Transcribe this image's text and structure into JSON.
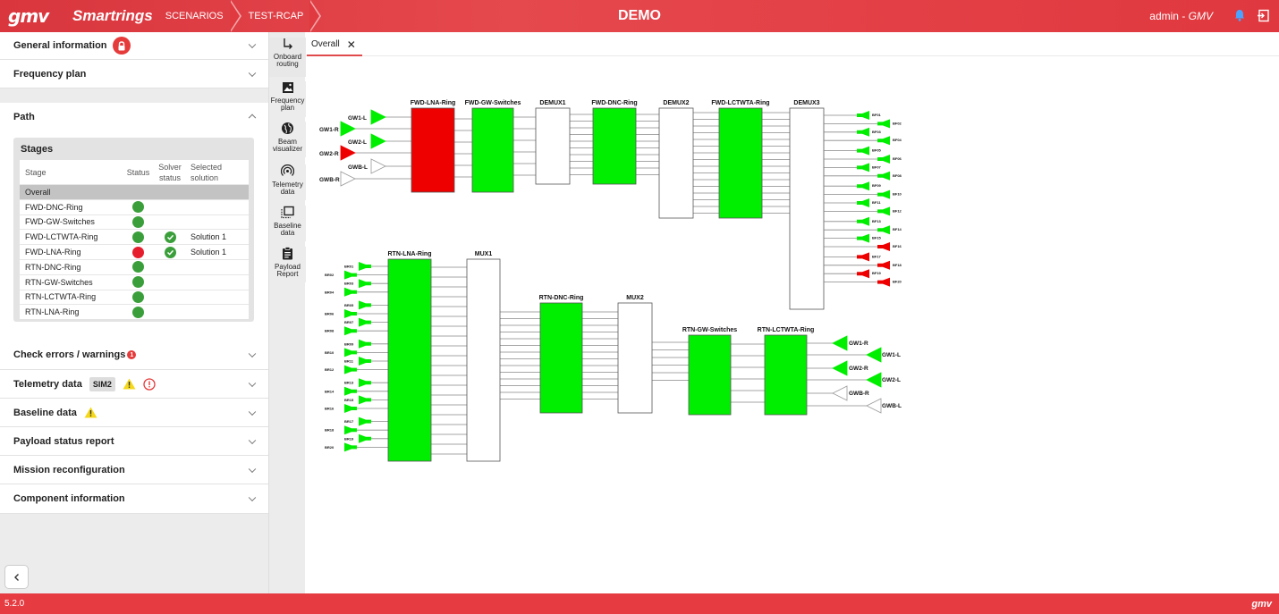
{
  "topbar": {
    "logo": "gmv",
    "app_name": "Smartrings",
    "crumbs": [
      "SCENARIOS",
      "TEST-RCAP"
    ],
    "title": "DEMO",
    "user": "admin - ",
    "user_org": "GMV"
  },
  "left": {
    "general_info": "General information",
    "frequency_plan": "Frequency plan",
    "path": "Path",
    "stages": {
      "title": "Stages",
      "headers": {
        "stage": "Stage",
        "status": "Status",
        "solver": "Solver status",
        "solution": "Selected solution"
      },
      "rows": [
        {
          "stage": "Overall",
          "status": "",
          "solver": "",
          "solution": ""
        },
        {
          "stage": "FWD-DNC-Ring",
          "status": "ok",
          "solver": "",
          "solution": ""
        },
        {
          "stage": "FWD-GW-Switches",
          "status": "ok",
          "solver": "",
          "solution": ""
        },
        {
          "stage": "FWD-LCTWTA-Ring",
          "status": "ok",
          "solver": "ok",
          "solution": "Solution 1"
        },
        {
          "stage": "FWD-LNA-Ring",
          "status": "error",
          "solver": "ok",
          "solution": "Solution 1"
        },
        {
          "stage": "RTN-DNC-Ring",
          "status": "ok",
          "solver": "",
          "solution": ""
        },
        {
          "stage": "RTN-GW-Switches",
          "status": "ok",
          "solver": "",
          "solution": ""
        },
        {
          "stage": "RTN-LCTWTA-Ring",
          "status": "ok",
          "solver": "",
          "solution": ""
        },
        {
          "stage": "RTN-LNA-Ring",
          "status": "ok",
          "solver": "",
          "solution": ""
        }
      ]
    },
    "check_errors": "Check errors / warnings",
    "check_errors_count": "1",
    "telemetry": "Telemetry data",
    "telemetry_chip": "SIM2",
    "baseline": "Baseline data",
    "payload_status": "Payload status report",
    "mission_reconfig": "Mission reconfiguration",
    "component_info": "Component information"
  },
  "tools": [
    {
      "label": "Onboard routing",
      "icon": "routing-icon"
    },
    {
      "label": "Frequency plan",
      "icon": "image-icon"
    },
    {
      "label": "Beam visualizer",
      "icon": "globe-icon"
    },
    {
      "label": "Telemetry data",
      "icon": "antenna-icon"
    },
    {
      "label": "Baseline data",
      "icon": "baseline-icon"
    },
    {
      "label": "Payload Report",
      "icon": "clipboard-icon"
    }
  ],
  "tab": {
    "label": "Overall"
  },
  "diagram": {
    "fwd_inputs": [
      "GW1-L",
      "GW1-R",
      "GW2-L",
      "GW2-R",
      "GWB-L",
      "GWB-R"
    ],
    "fwd_blocks": [
      "FWD-LNA-Ring",
      "FWD-GW-Switches",
      "DEMUX1",
      "FWD-DNC-Ring",
      "DEMUX2",
      "FWD-LCTWTA-Ring",
      "DEMUX3"
    ],
    "fwd_outputs": [
      "BF01",
      "BF02",
      "BF03",
      "BF04",
      "BF05",
      "BF06",
      "BF07",
      "BF08",
      "BF09",
      "BF10",
      "BF11",
      "BF12",
      "BF13",
      "BF14",
      "BF15",
      "BF16",
      "BF17",
      "BF18",
      "BF19",
      "BF20"
    ],
    "rtn_inputs": [
      "BR01",
      "BR02",
      "BR03",
      "BR04",
      "BR05",
      "BR06",
      "BR07",
      "BR08",
      "BR09",
      "BR10",
      "BR11",
      "BR12",
      "BR13",
      "BR14",
      "BR15",
      "BR16",
      "BR17",
      "BR18",
      "BR19",
      "BR20"
    ],
    "rtn_blocks": [
      "RTN-LNA-Ring",
      "MUX1",
      "RTN-DNC-Ring",
      "MUX2",
      "RTN-GW-Switches",
      "RTN-LCTWTA-Ring"
    ],
    "rtn_outputs": [
      "GW1-R",
      "GW1-L",
      "GW2-R",
      "GW2-L",
      "GWB-R",
      "GWB-L"
    ]
  },
  "footer": {
    "version": "5.2.0",
    "logo": "gmv"
  },
  "colors": {
    "brand": "#e53b41",
    "ok": "#00ee00",
    "error": "#ee0000",
    "status_ok": "#3a9f3a"
  }
}
